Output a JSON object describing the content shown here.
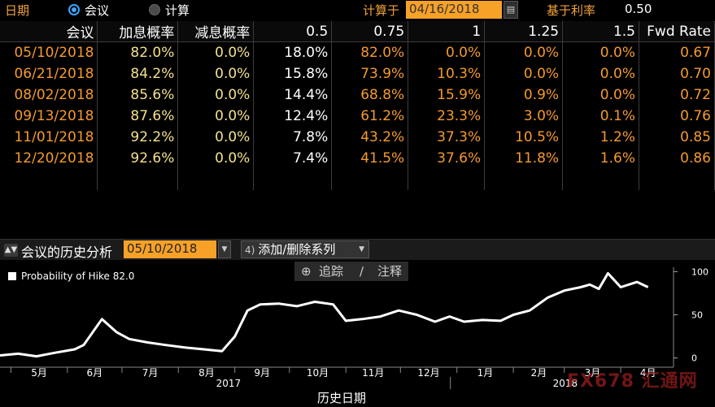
{
  "topbar": {
    "date_label": "日期",
    "option_meeting": "会议",
    "option_calc": "计算",
    "calc_on_label": "计算于",
    "calc_date": "04/16/2018",
    "base_rate_label": "基于利率",
    "base_rate_value": "0.50"
  },
  "table": {
    "headers": [
      "会议",
      "加息概率",
      "减息概率",
      "0.5",
      "0.75",
      "1",
      "1.25",
      "1.5",
      "Fwd Rate"
    ],
    "rows": [
      [
        "05/10/2018",
        "82.0%",
        "0.0%",
        "18.0%",
        "82.0%",
        "0.0%",
        "0.0%",
        "0.0%",
        "0.67"
      ],
      [
        "06/21/2018",
        "84.2%",
        "0.0%",
        "15.8%",
        "73.9%",
        "10.3%",
        "0.0%",
        "0.0%",
        "0.70"
      ],
      [
        "08/02/2018",
        "85.6%",
        "0.0%",
        "14.4%",
        "68.8%",
        "15.9%",
        "0.9%",
        "0.0%",
        "0.72"
      ],
      [
        "09/13/2018",
        "87.6%",
        "0.0%",
        "12.4%",
        "61.2%",
        "23.3%",
        "3.0%",
        "0.1%",
        "0.76"
      ],
      [
        "11/01/2018",
        "92.2%",
        "0.0%",
        "7.8%",
        "43.2%",
        "37.3%",
        "10.5%",
        "1.2%",
        "0.85"
      ],
      [
        "12/20/2018",
        "92.6%",
        "0.0%",
        "7.4%",
        "41.5%",
        "37.6%",
        "11.8%",
        "1.6%",
        "0.86"
      ]
    ]
  },
  "section": {
    "title": "会议的历史分析",
    "date": "05/10/2018",
    "menu_num": "4)",
    "menu_label": "添加/删除系列"
  },
  "chart_tools": {
    "track": "追踪",
    "annotate": "注释"
  },
  "watermark": "FX678 汇通网",
  "chart_data": {
    "type": "line",
    "series": [
      {
        "name": "Probability of Hike",
        "legend_value": "82.0",
        "color": "#ffffff",
        "x": [
          "2017-04-25",
          "2017-05-05",
          "2017-05-15",
          "2017-05-25",
          "2017-06-05",
          "2017-06-10",
          "2017-06-20",
          "2017-06-28",
          "2017-07-05",
          "2017-07-15",
          "2017-07-25",
          "2017-08-05",
          "2017-08-15",
          "2017-08-25",
          "2017-09-01",
          "2017-09-08",
          "2017-09-15",
          "2017-09-25",
          "2017-10-05",
          "2017-10-15",
          "2017-10-25",
          "2017-11-01",
          "2017-11-10",
          "2017-11-20",
          "2017-11-30",
          "2017-12-10",
          "2017-12-20",
          "2017-12-28",
          "2018-01-05",
          "2018-01-15",
          "2018-01-25",
          "2018-02-01",
          "2018-02-10",
          "2018-02-20",
          "2018-03-01",
          "2018-03-10",
          "2018-03-15",
          "2018-03-20",
          "2018-03-25",
          "2018-04-01",
          "2018-04-10",
          "2018-04-16"
        ],
        "values": [
          3,
          5,
          2,
          6,
          10,
          15,
          45,
          30,
          22,
          18,
          15,
          12,
          10,
          8,
          25,
          55,
          62,
          63,
          60,
          65,
          62,
          43,
          45,
          48,
          55,
          50,
          42,
          48,
          42,
          44,
          43,
          50,
          55,
          70,
          78,
          82,
          85,
          80,
          98,
          82,
          88,
          82
        ]
      }
    ],
    "x_ticks": [
      "5月",
      "6月",
      "7月",
      "8月",
      "9月",
      "10月",
      "11月",
      "12月",
      "1月",
      "2月",
      "3月",
      "4月"
    ],
    "year_labels": [
      "2017",
      "2018"
    ],
    "y_ticks": [
      0,
      50,
      100
    ],
    "ylim": [
      -5,
      105
    ],
    "xlabel": "历史日期",
    "grid": false,
    "legend_position": "top-left"
  }
}
